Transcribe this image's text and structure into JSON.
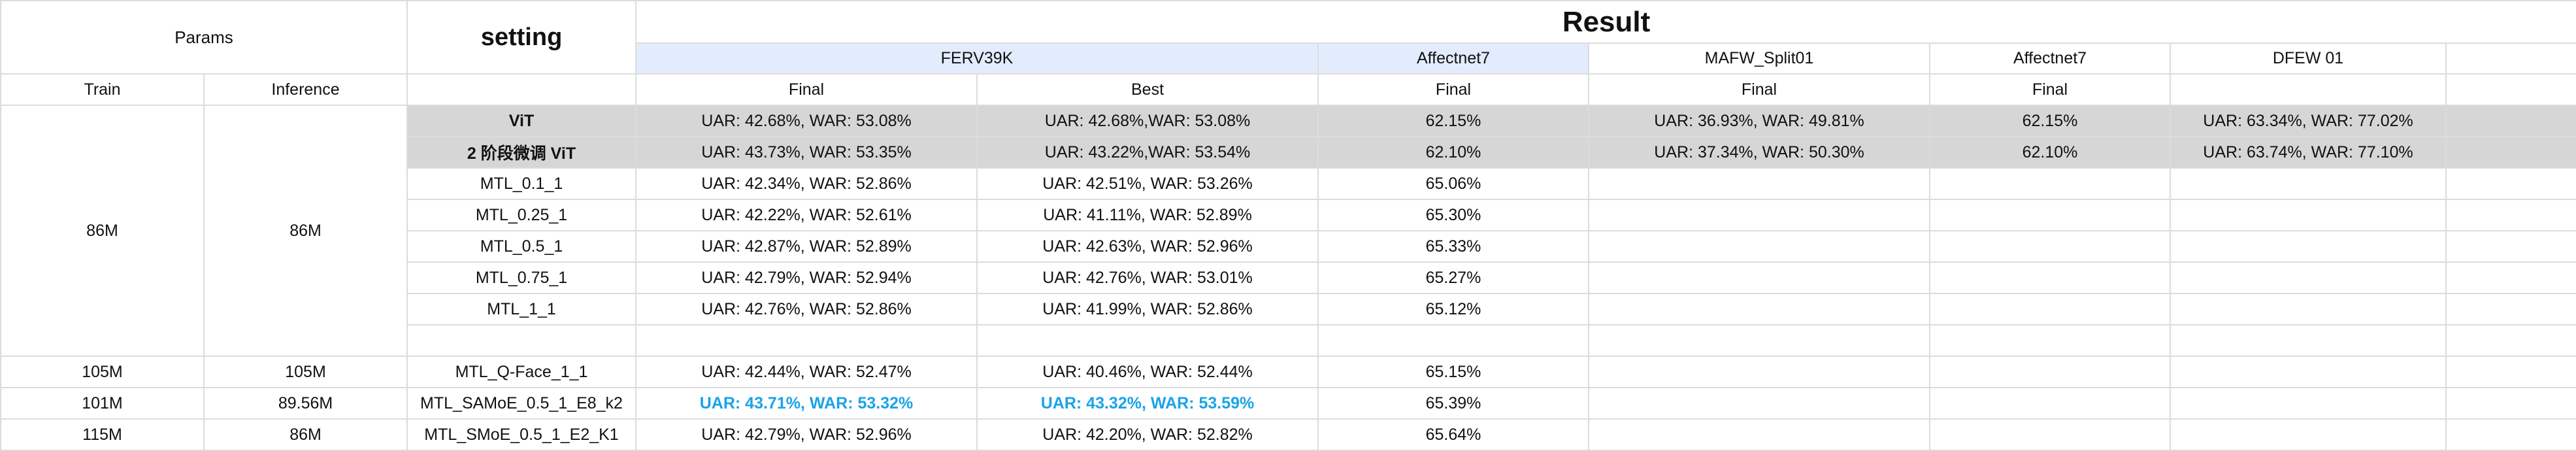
{
  "headers": {
    "params": "Params",
    "setting": "setting",
    "result": "Result",
    "datasets": [
      "FERV39K",
      "Affectnet7",
      "MAFW_Split01",
      "Affectnet7",
      "DFEW 01"
    ],
    "sub": {
      "train": "Train",
      "inference": "Inference",
      "ferv_final": "Final",
      "ferv_best": "Best",
      "aff_final": "Final",
      "mafw_final": "Final",
      "aff2_final": "Final"
    }
  },
  "group_86m": {
    "train": "86M",
    "inference": "86M"
  },
  "rows": [
    {
      "setting": "ViT",
      "ferv_final": "UAR: 42.68%, WAR: 53.08%",
      "ferv_best": "UAR: 42.68%,WAR: 53.08%",
      "aff_final": "62.15%",
      "mafw_final": "UAR: 36.93%, WAR: 49.81%",
      "aff2_final": "62.15%",
      "dfew": "UAR: 63.34%, WAR: 77.02%"
    },
    {
      "setting": "2 阶段微调 ViT",
      "ferv_final": "UAR: 43.73%, WAR: 53.35%",
      "ferv_best": "UAR: 43.22%,WAR: 53.54%",
      "aff_final": "62.10%",
      "mafw_final": "UAR: 37.34%, WAR: 50.30%",
      "aff2_final": "62.10%",
      "dfew": "UAR: 63.74%, WAR: 77.10%"
    },
    {
      "setting": "MTL_0.1_1",
      "ferv_final": "UAR: 42.34%, WAR: 52.86%",
      "ferv_best": "UAR: 42.51%, WAR: 53.26%",
      "aff_final": "65.06%"
    },
    {
      "setting": "MTL_0.25_1",
      "ferv_final": "UAR: 42.22%, WAR: 52.61%",
      "ferv_best": "UAR: 41.11%, WAR: 52.89%",
      "aff_final": "65.30%"
    },
    {
      "setting": "MTL_0.5_1",
      "ferv_final": "UAR: 42.87%, WAR: 52.89%",
      "ferv_best": "UAR: 42.63%, WAR: 52.96%",
      "aff_final": "65.33%"
    },
    {
      "setting": "MTL_0.75_1",
      "ferv_final": "UAR: 42.79%, WAR: 52.94%",
      "ferv_best": "UAR: 42.76%, WAR: 53.01%",
      "aff_final": "65.27%"
    },
    {
      "setting": "MTL_1_1",
      "ferv_final": "UAR: 42.76%, WAR: 52.86%",
      "ferv_best": "UAR: 41.99%, WAR: 52.86%",
      "aff_final": "65.12%"
    },
    {
      "train": "105M",
      "inference": "105M",
      "setting": "MTL_Q-Face_1_1",
      "ferv_final": "UAR: 42.44%, WAR: 52.47%",
      "ferv_best": "UAR: 40.46%, WAR: 52.44%",
      "aff_final": "65.15%"
    },
    {
      "train": "101M",
      "inference": "89.56M",
      "setting": "MTL_SAMoE_0.5_1_E8_k2",
      "ferv_final": "UAR: 43.71%, WAR: 53.32%",
      "ferv_best": "UAR: 43.32%, WAR: 53.59%",
      "aff_final": "65.39%"
    },
    {
      "train": "115M",
      "inference": "86M",
      "setting": "MTL_SMoE_0.5_1_E2_K1",
      "ferv_final": "UAR: 42.79%, WAR: 52.96%",
      "ferv_best": "UAR: 42.20%, WAR: 52.82%",
      "aff_final": "65.64%"
    }
  ],
  "colors": {
    "highlight_text": "#1aa3e8",
    "gray_row": "#d6d6d6",
    "header_blue": "#e3ecfc",
    "grid": "#dcdcdc"
  }
}
